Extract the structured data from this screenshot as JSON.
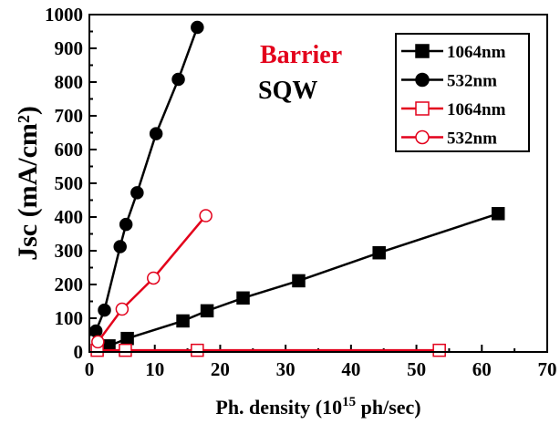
{
  "chart_data": {
    "type": "line",
    "xlabel_main": "Ph. density (10",
    "xlabel_sup": "15",
    "xlabel_tail": " ph/sec)",
    "ylabel": "Jsc (mA/cm²)",
    "xlim": [
      0,
      70
    ],
    "ylim": [
      0,
      1000
    ],
    "x_ticks": [
      "0",
      "10",
      "20",
      "30",
      "40",
      "50",
      "60",
      "70"
    ],
    "y_ticks": [
      "0",
      "100",
      "200",
      "300",
      "400",
      "500",
      "600",
      "700",
      "800",
      "900",
      "1000"
    ],
    "annotations": [
      {
        "text": "Barrier",
        "color": "#e3001b"
      },
      {
        "text": "SQW",
        "color": "#000000"
      }
    ],
    "legend_position": "top-right",
    "series": [
      {
        "name": "1064nm",
        "group": "SQW",
        "color": "#000000",
        "marker": "square",
        "filled": true,
        "x": [
          3,
          5.8,
          14.3,
          18,
          23.5,
          32,
          44.3,
          62.5
        ],
        "y": [
          18,
          40,
          92,
          122,
          160,
          211,
          294,
          410
        ]
      },
      {
        "name": "532nm",
        "group": "SQW",
        "color": "#000000",
        "marker": "circle",
        "filled": true,
        "x": [
          1,
          2.3,
          4.7,
          5.6,
          7.3,
          10.2,
          13.6,
          16.5
        ],
        "y": [
          62,
          124,
          312,
          378,
          472,
          647,
          808,
          962
        ]
      },
      {
        "name": "1064nm",
        "group": "Barrier",
        "color": "#e3001b",
        "marker": "square",
        "filled": false,
        "x": [
          1.2,
          5.5,
          16.5,
          53.5
        ],
        "y": [
          5,
          5,
          5,
          5
        ]
      },
      {
        "name": "532nm",
        "group": "Barrier",
        "color": "#e3001b",
        "marker": "circle",
        "filled": false,
        "x": [
          1.3,
          5,
          9.8,
          17.8
        ],
        "y": [
          30,
          127,
          219,
          404
        ]
      }
    ]
  }
}
